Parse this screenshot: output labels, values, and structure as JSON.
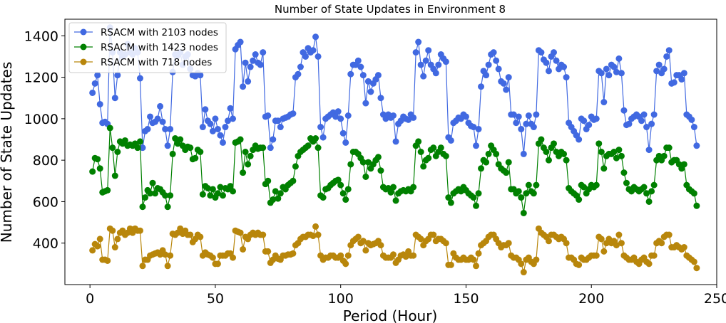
{
  "chart_data": {
    "type": "line",
    "title": "Number of State Updates in Environment 8",
    "xlabel": "Period (Hour)",
    "ylabel": "Number of State Updates",
    "xlim": [
      -10,
      250
    ],
    "ylim": [
      200,
      1480
    ],
    "xticks": [
      0,
      50,
      100,
      150,
      200,
      250
    ],
    "yticks": [
      400,
      600,
      800,
      1000,
      1200,
      1400
    ],
    "legend_position": "top-left",
    "grid": false,
    "series": [
      {
        "name": "RSACM with 2103 nodes",
        "color": "#4169e1",
        "values": [
          1125,
          1170,
          1210,
          1070,
          980,
          985,
          975,
          1440,
          1320,
          1100,
          1210,
          1320,
          1300,
          1310,
          1360,
          1320,
          1310,
          1340,
          1320,
          1195,
          860,
          940,
          950,
          1010,
          980,
          985,
          1000,
          1060,
          985,
          950,
          870,
          950,
          1225,
          1310,
          1305,
          1320,
          1260,
          1300,
          1310,
          1240,
          1210,
          1205,
          1220,
          1210,
          960,
          1045,
          990,
          975,
          940,
          1000,
          950,
          920,
          885,
          960,
          990,
          1050,
          1000,
          1335,
          1355,
          1370,
          1155,
          1270,
          1180,
          1250,
          1280,
          1310,
          1270,
          1260,
          1320,
          1010,
          1015,
          860,
          900,
          990,
          990,
          960,
          1000,
          1005,
          1010,
          1020,
          1025,
          1200,
          1215,
          1250,
          1320,
          1300,
          1340,
          1320,
          1330,
          1395,
          1300,
          960,
          910,
          1000,
          1010,
          1020,
          1030,
          1010,
          1035,
          1000,
          930,
          885,
          1015,
          1215,
          1260,
          1260,
          1280,
          1250,
          1210,
          1075,
          1180,
          1130,
          1170,
          1190,
          1210,
          1100,
          1020,
          1000,
          1020,
          1005,
          1015,
          890,
          975,
          990,
          1010,
          1000,
          995,
          1020,
          1005,
          1320,
          1370,
          1260,
          1205,
          1280,
          1330,
          1260,
          1240,
          1220,
          1260,
          1310,
          1290,
          1275,
          910,
          895,
          980,
          990,
          1005,
          1000,
          1020,
          1010,
          980,
          965,
          960,
          870,
          950,
          1155,
          1230,
          1210,
          1260,
          1310,
          1320,
          1280,
          1240,
          1180,
          1170,
          1140,
          1200,
          1020,
          1020,
          980,
          1010,
          950,
          830,
          975,
          1015,
          975,
          960,
          1020,
          1330,
          1320,
          1285,
          1270,
          1230,
          1300,
          1320,
          1280,
          1240,
          1260,
          1250,
          1200,
          980,
          960,
          940,
          920,
          900,
          1000,
          990,
          950,
          970,
          1010,
          995,
          1000,
          1230,
          1220,
          1080,
          1240,
          1210,
          1260,
          1250,
          1225,
          1290,
          1220,
          1040,
          970,
          975,
          1000,
          1010,
          1020,
          1010,
          990,
          1020,
          960,
          850,
          975,
          1020,
          1230,
          1260,
          1220,
          1240,
          1300,
          1330,
          1170,
          1175,
          1210,
          1210,
          1190,
          1220,
          1020,
          1010,
          995,
          960,
          870
        ]
      },
      {
        "name": "RSACM with 1423 nodes",
        "color": "#008000",
        "values": [
          745,
          810,
          805,
          760,
          645,
          650,
          655,
          955,
          860,
          725,
          840,
          890,
          880,
          895,
          870,
          875,
          870,
          880,
          860,
          890,
          575,
          620,
          655,
          640,
          690,
          640,
          665,
          660,
          645,
          630,
          575,
          630,
          830,
          905,
          880,
          900,
          870,
          850,
          865,
          860,
          805,
          810,
          850,
          840,
          635,
          675,
          665,
          630,
          660,
          620,
          640,
          670,
          630,
          665,
          660,
          675,
          650,
          885,
          890,
          900,
          740,
          840,
          780,
          820,
          850,
          870,
          855,
          860,
          860,
          685,
          700,
          595,
          610,
          650,
          615,
          640,
          670,
          660,
          680,
          690,
          700,
          770,
          820,
          840,
          850,
          860,
          870,
          905,
          890,
          905,
          860,
          630,
          620,
          660,
          665,
          680,
          690,
          700,
          705,
          680,
          640,
          610,
          660,
          780,
          840,
          840,
          830,
          810,
          790,
          720,
          790,
          760,
          780,
          800,
          815,
          750,
          670,
          660,
          665,
          645,
          670,
          605,
          640,
          650,
          655,
          650,
          660,
          650,
          670,
          870,
          890,
          840,
          770,
          800,
          810,
          850,
          860,
          820,
          840,
          860,
          830,
          820,
          620,
          595,
          640,
          650,
          660,
          650,
          670,
          655,
          640,
          630,
          620,
          580,
          640,
          760,
          800,
          790,
          830,
          870,
          850,
          830,
          780,
          760,
          750,
          740,
          790,
          660,
          660,
          640,
          650,
          620,
          545,
          640,
          680,
          650,
          640,
          680,
          880,
          900,
          860,
          840,
          800,
          860,
          880,
          840,
          820,
          840,
          830,
          800,
          665,
          650,
          640,
          630,
          610,
          680,
          670,
          640,
          660,
          680,
          670,
          680,
          880,
          840,
          760,
          820,
          830,
          830,
          840,
          810,
          850,
          820,
          740,
          690,
          660,
          650,
          670,
          660,
          650,
          660,
          670,
          640,
          600,
          650,
          680,
          800,
          820,
          800,
          820,
          860,
          860,
          790,
          800,
          800,
          780,
          760,
          780,
          680,
          660,
          650,
          640,
          580
        ]
      },
      {
        "name": "RSACM with 718 nodes",
        "color": "#b8860b",
        "values": [
          365,
          395,
          385,
          420,
          320,
          320,
          315,
          470,
          460,
          380,
          420,
          450,
          460,
          440,
          450,
          470,
          450,
          470,
          460,
          460,
          290,
          320,
          320,
          340,
          345,
          350,
          355,
          345,
          365,
          345,
          290,
          340,
          445,
          440,
          450,
          470,
          445,
          460,
          440,
          440,
          405,
          420,
          440,
          430,
          340,
          355,
          345,
          340,
          330,
          300,
          300,
          340,
          340,
          340,
          350,
          350,
          330,
          460,
          455,
          450,
          370,
          430,
          420,
          440,
          450,
          440,
          450,
          440,
          440,
          360,
          360,
          305,
          320,
          340,
          325,
          320,
          340,
          340,
          345,
          345,
          350,
          390,
          400,
          420,
          430,
          430,
          440,
          440,
          435,
          480,
          440,
          340,
          320,
          330,
          330,
          340,
          340,
          330,
          330,
          340,
          315,
          300,
          340,
          390,
          410,
          420,
          430,
          400,
          410,
          365,
          400,
          390,
          395,
          400,
          410,
          390,
          340,
          330,
          330,
          330,
          345,
          305,
          320,
          340,
          345,
          335,
          360,
          340,
          340,
          440,
          430,
          420,
          390,
          410,
          420,
          440,
          440,
          410,
          420,
          420,
          410,
          400,
          295,
          295,
          350,
          330,
          320,
          320,
          330,
          320,
          320,
          330,
          320,
          290,
          350,
          390,
          400,
          410,
          430,
          440,
          440,
          420,
          400,
          380,
          390,
          390,
          400,
          340,
          330,
          330,
          320,
          300,
          260,
          320,
          330,
          310,
          300,
          320,
          470,
          450,
          440,
          430,
          410,
          440,
          440,
          430,
          420,
          430,
          420,
          400,
          330,
          330,
          320,
          300,
          295,
          330,
          320,
          320,
          330,
          340,
          340,
          340,
          430,
          420,
          360,
          400,
          420,
          400,
          410,
          390,
          440,
          400,
          340,
          330,
          320,
          320,
          330,
          310,
          300,
          320,
          330,
          310,
          300,
          340,
          340,
          400,
          410,
          400,
          430,
          440,
          440,
          380,
          380,
          390,
          380,
          370,
          380,
          340,
          330,
          320,
          310,
          280
        ]
      }
    ]
  }
}
